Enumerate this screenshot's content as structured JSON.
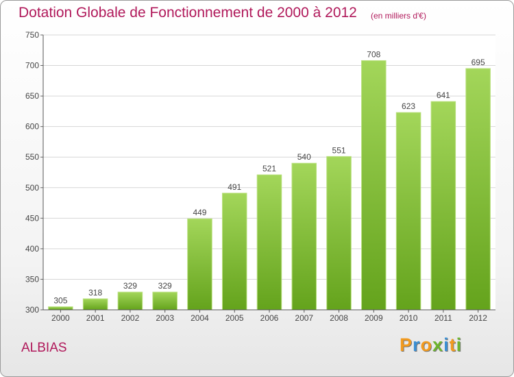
{
  "chart_data": {
    "type": "bar",
    "title": "Dotation Globale de Fonctionnement de 2000 à 2012",
    "subtitle": "(en milliers d'€)",
    "categories": [
      "2000",
      "2001",
      "2002",
      "2003",
      "2004",
      "2005",
      "2006",
      "2007",
      "2008",
      "2009",
      "2010",
      "2011",
      "2012"
    ],
    "values": [
      305,
      318,
      329,
      329,
      449,
      491,
      521,
      540,
      551,
      708,
      623,
      641,
      695
    ],
    "ylim": [
      300,
      750
    ],
    "yticks": [
      300,
      350,
      400,
      450,
      500,
      550,
      600,
      650,
      700,
      750
    ],
    "grid": true,
    "bar_color": "#7cc232",
    "xlabel": "",
    "ylabel": ""
  },
  "footer": {
    "commune": "ALBIAS",
    "logo_letters": [
      "P",
      "r",
      "o",
      "x",
      "i",
      "t",
      "i"
    ],
    "logo_colors": [
      "#f29a1e",
      "#3a8fd4",
      "#f29a1e",
      "#6cb52d",
      "#3a8fd4",
      "#f29a1e",
      "#6cb52d"
    ]
  },
  "colors": {
    "title": "#b0185a"
  }
}
